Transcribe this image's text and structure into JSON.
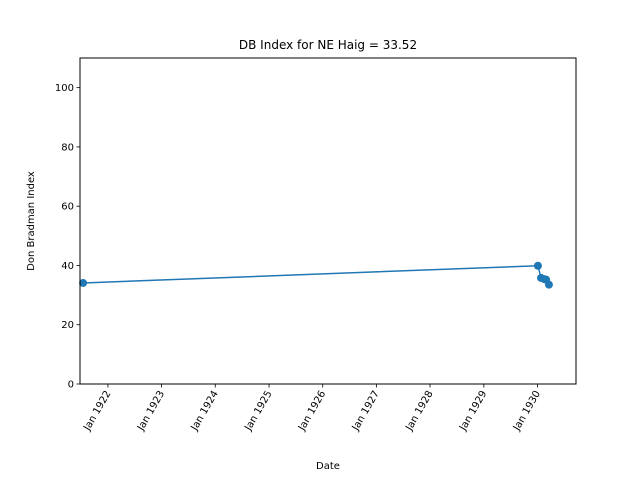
{
  "chart_data": {
    "type": "line",
    "title": "DB Index for NE Haig = 33.52",
    "xlabel": "Date",
    "ylabel": "Don Bradman Index",
    "x_tick_labels": [
      "Jan 1922",
      "Jan 1923",
      "Jan 1924",
      "Jan 1925",
      "Jan 1926",
      "Jan 1927",
      "Jan 1928",
      "Jan 1929",
      "Jan 1930"
    ],
    "y_ticks": [
      0,
      20,
      40,
      60,
      80,
      100
    ],
    "ylim": [
      0,
      110
    ],
    "xlim": [
      "1921-06-25",
      "1930-09-20"
    ],
    "grid": false,
    "series": [
      {
        "color": "#1f77b4",
        "marker": "circle",
        "points": [
          {
            "x": "1921-07-16",
            "y": 34.1
          },
          {
            "x": "1930-01-04",
            "y": 39.9
          },
          {
            "x": "1930-01-25",
            "y": 35.8
          },
          {
            "x": "1930-02-15",
            "y": 35.4
          },
          {
            "x": "1930-03-01",
            "y": 35.2
          },
          {
            "x": "1930-03-20",
            "y": 33.52
          }
        ]
      }
    ]
  }
}
